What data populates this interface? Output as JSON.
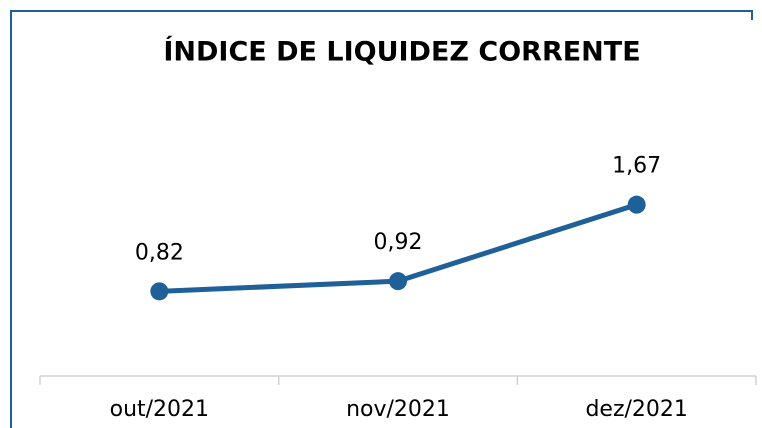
{
  "chart_data": {
    "type": "line",
    "title": "ÍNDICE DE LIQUIDEZ CORRENTE",
    "categories": [
      "out/2021",
      "nov/2021",
      "dez/2021"
    ],
    "series": [
      {
        "name": null,
        "color": "#1f6098",
        "values": [
          0.82,
          0.92,
          1.67
        ],
        "value_labels": [
          "0,82",
          "0,92",
          "1,67"
        ]
      }
    ]
  }
}
